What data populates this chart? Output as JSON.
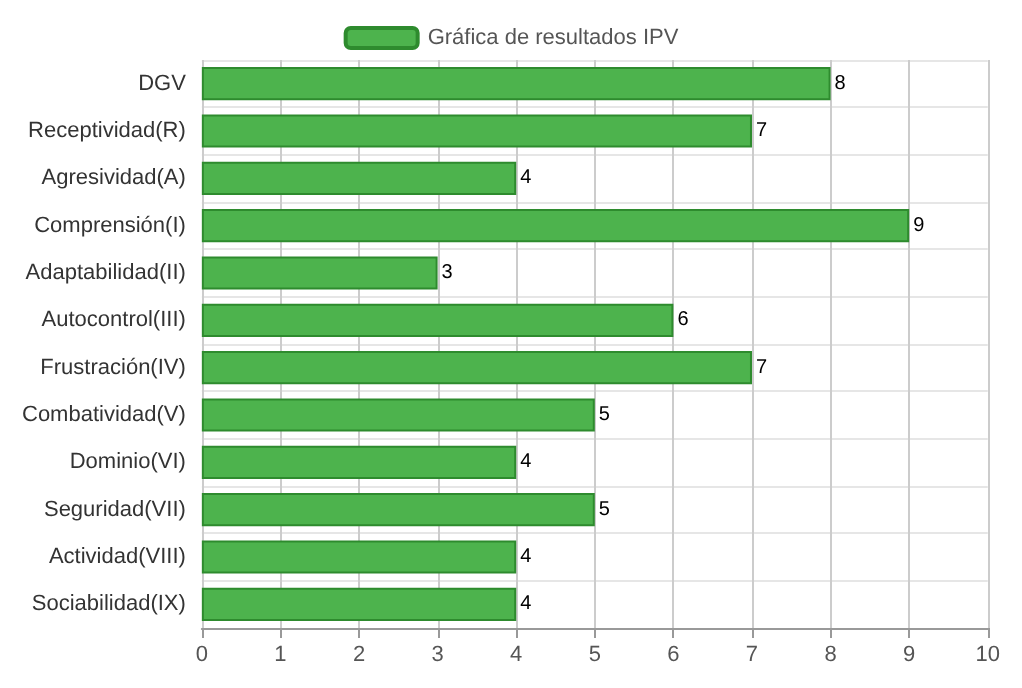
{
  "chart_data": {
    "type": "bar",
    "orientation": "horizontal",
    "categories": [
      "DGV",
      "Receptividad(R)",
      "Agresividad(A)",
      "Comprensión(I)",
      "Adaptabilidad(II)",
      "Autocontrol(III)",
      "Frustración(IV)",
      "Combatividad(V)",
      "Dominio(VI)",
      "Seguridad(VII)",
      "Actividad(VIII)",
      "Sociabilidad(IX)"
    ],
    "series": [
      {
        "name": "Gráfica de resultados IPV",
        "color": "#4db34d",
        "values": [
          8,
          7,
          4,
          9,
          3,
          6,
          7,
          5,
          4,
          5,
          4,
          4
        ]
      }
    ],
    "xlim": [
      0,
      10
    ],
    "xticks": [
      0,
      1,
      2,
      3,
      4,
      5,
      6,
      7,
      8,
      9,
      10
    ],
    "grid": true,
    "legend": "top",
    "data_labels": true
  }
}
